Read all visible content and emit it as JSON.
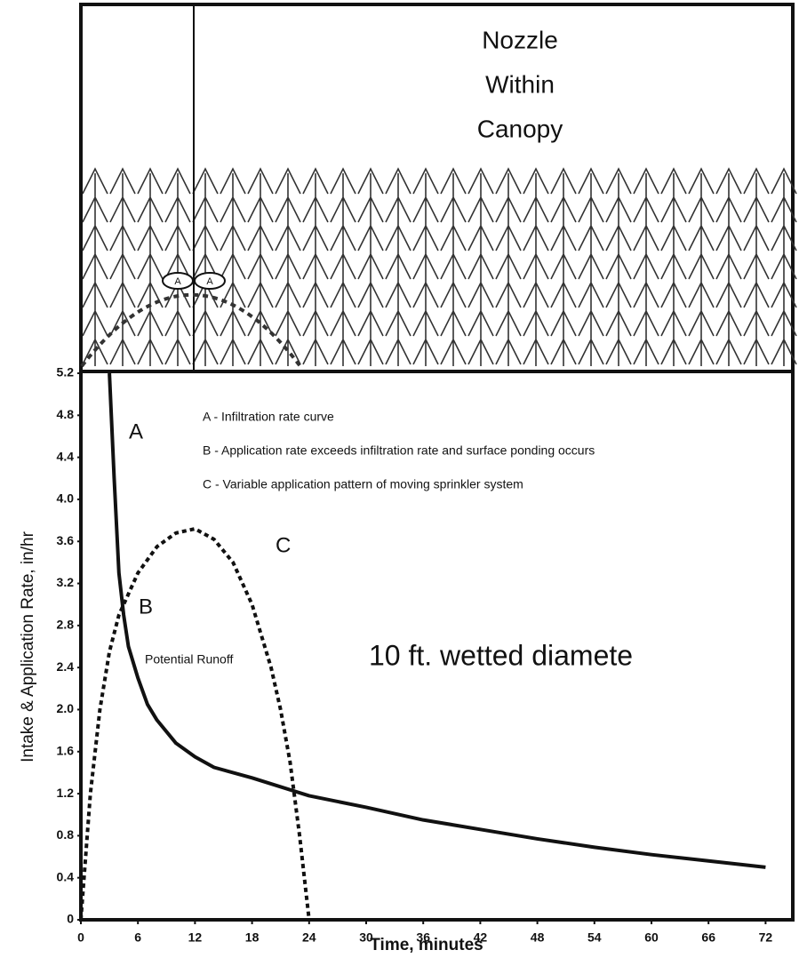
{
  "diagram": {
    "title_lines": [
      "Nozzle",
      "Within",
      "Canopy"
    ],
    "markers": [
      "A",
      "A"
    ]
  },
  "chart_data": {
    "type": "line",
    "x_label": "Time, minutes",
    "y_label": "Intake & Application Rate, in/hr",
    "notes": [
      "A - Infiltration rate curve",
      "B - Application rate exceeds infiltration rate and surface ponding occurs",
      "C - Variable application pattern of moving sprinkler system"
    ],
    "annotations": [
      "A",
      "B",
      "C",
      "Potential Runoff",
      "10 ft. wetted diamete"
    ],
    "xlim": [
      0,
      75
    ],
    "ylim": [
      0,
      5.2
    ],
    "xticks": [
      0,
      6,
      12,
      18,
      24,
      30,
      36,
      42,
      48,
      54,
      60,
      66,
      72
    ],
    "yticks": [
      0,
      0.4,
      0.8,
      1.2,
      1.6,
      {
        "value": 2,
        "label": "2.0"
      },
      2.4,
      2.8,
      3.2,
      3.6,
      {
        "value": 4,
        "label": "4.0"
      },
      4.4,
      4.8,
      5.2
    ],
    "series": [
      {
        "color": "#111",
        "dashed": false,
        "x": [
          3,
          3.5,
          4,
          4.5,
          5,
          6,
          7,
          8,
          10,
          12,
          14,
          18,
          24,
          30,
          36,
          42,
          48,
          54,
          60,
          66,
          72
        ],
        "values": [
          5.2,
          4.2,
          3.3,
          2.9,
          2.6,
          2.3,
          2.05,
          1.9,
          1.68,
          1.55,
          1.45,
          1.35,
          1.18,
          1.07,
          0.95,
          0.86,
          0.77,
          0.69,
          0.62,
          0.56,
          0.5
        ]
      },
      {
        "color": "#111",
        "dashed": true,
        "x": [
          0,
          1,
          2,
          3,
          4,
          6,
          8,
          10,
          12,
          14,
          16,
          18,
          20,
          21,
          22,
          23,
          23.5,
          24
        ],
        "values": [
          0,
          1.2,
          2,
          2.55,
          2.9,
          3.3,
          3.55,
          3.68,
          3.72,
          3.62,
          3.4,
          3,
          2.4,
          2,
          1.5,
          0.8,
          0.4,
          0
        ]
      }
    ]
  }
}
